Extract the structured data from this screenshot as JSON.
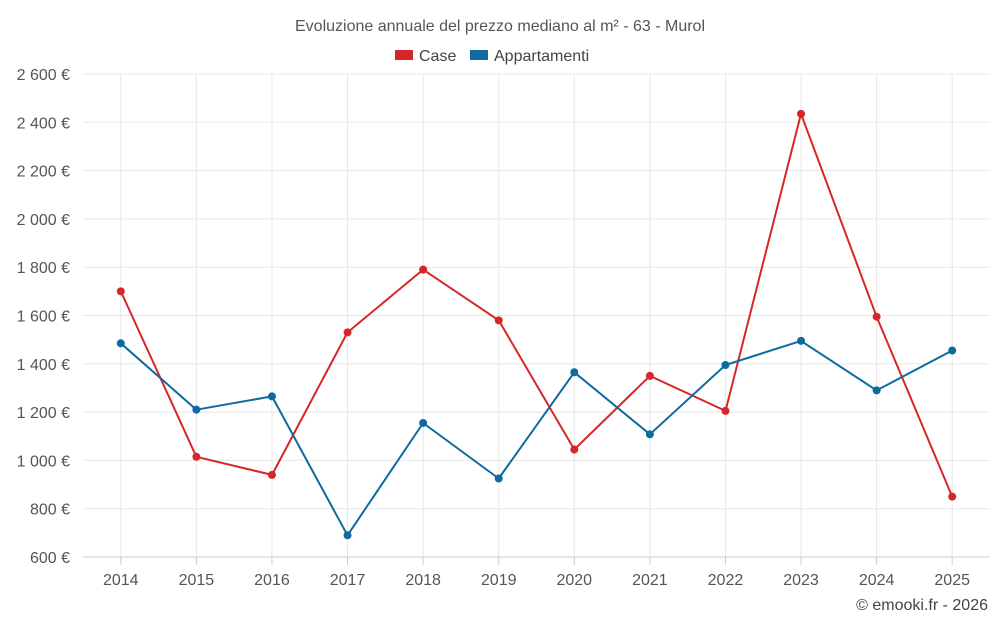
{
  "chart_data": {
    "type": "line",
    "title": "Evoluzione annuale del prezzo mediano al m² - 63 - Murol",
    "categories": [
      "2014",
      "2015",
      "2016",
      "2017",
      "2018",
      "2019",
      "2020",
      "2021",
      "2022",
      "2023",
      "2024",
      "2025"
    ],
    "series": [
      {
        "name": "Case",
        "color": "#d62728",
        "values": [
          1700,
          1015,
          940,
          1530,
          1790,
          1580,
          1045,
          1350,
          1205,
          2435,
          1595,
          850
        ]
      },
      {
        "name": "Appartamenti",
        "color": "#0e6a9f",
        "values": [
          1485,
          1210,
          1265,
          690,
          1155,
          925,
          1365,
          1108,
          1395,
          1495,
          1290,
          1455
        ]
      }
    ],
    "ylim": [
      600,
      2600
    ],
    "yticks": [
      600,
      800,
      1000,
      1200,
      1400,
      1600,
      1800,
      2000,
      2200,
      2400,
      2600
    ],
    "ytick_labels": [
      "600 €",
      "800 €",
      "1 000 €",
      "1 200 €",
      "1 400 €",
      "1 600 €",
      "1 800 €",
      "2 000 €",
      "2 200 €",
      "2 400 €",
      "2 600 €"
    ],
    "xlabel": "",
    "ylabel": "",
    "legend_position": "top-center",
    "grid": true
  },
  "footer": {
    "copyright": "© emooki.fr - 2026"
  }
}
